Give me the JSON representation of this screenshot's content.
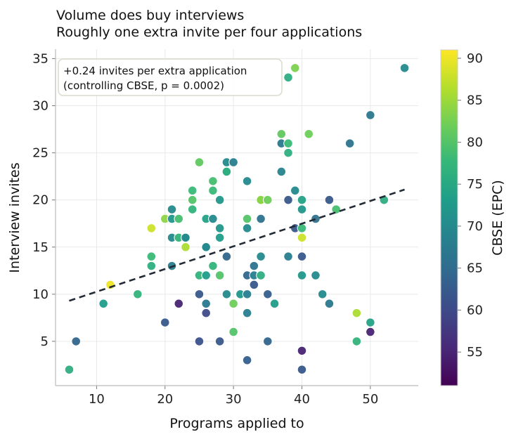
{
  "chart_data": {
    "type": "scatter",
    "title": "Volume does buy interviews",
    "subtitle": "Roughly one extra invite per four applications",
    "xlabel": "Programs applied to",
    "ylabel": "Interview invites",
    "xlim": [
      4,
      57
    ],
    "ylim": [
      0.3,
      36
    ],
    "xticks": [
      10,
      20,
      30,
      40,
      50
    ],
    "yticks": [
      5,
      10,
      15,
      20,
      25,
      30,
      35
    ],
    "grid": true,
    "annotation": [
      "+0.24 invites per extra application",
      "(controlling CBSE, p = 0.0002)"
    ],
    "trend": {
      "x": [
        6,
        55
      ],
      "y": [
        9.3,
        21.1
      ],
      "style": "dashed"
    },
    "colorbar": {
      "label": "CBSE (EPC)",
      "min": 51,
      "max": 91,
      "ticks": [
        55,
        60,
        65,
        70,
        75,
        80,
        85,
        90
      ],
      "colormap": [
        "#440154",
        "#482878",
        "#3e4989",
        "#31688e",
        "#26828e",
        "#1f9e89",
        "#35b779",
        "#6ece58",
        "#b5de2b",
        "#fde725"
      ]
    },
    "points": [
      {
        "x": 6,
        "y": 2,
        "c": 76
      },
      {
        "x": 7,
        "y": 5,
        "c": 64
      },
      {
        "x": 11,
        "y": 9,
        "c": 73
      },
      {
        "x": 12,
        "y": 11,
        "c": 90
      },
      {
        "x": 16,
        "y": 10,
        "c": 77
      },
      {
        "x": 18,
        "y": 17,
        "c": 88
      },
      {
        "x": 18,
        "y": 14,
        "c": 78
      },
      {
        "x": 18,
        "y": 13,
        "c": 76
      },
      {
        "x": 20,
        "y": 18,
        "c": 84
      },
      {
        "x": 20,
        "y": 7,
        "c": 62
      },
      {
        "x": 21,
        "y": 19,
        "c": 70
      },
      {
        "x": 21,
        "y": 18,
        "c": 72
      },
      {
        "x": 21,
        "y": 16,
        "c": 70
      },
      {
        "x": 21,
        "y": 13,
        "c": 68
      },
      {
        "x": 22,
        "y": 18,
        "c": 79
      },
      {
        "x": 22,
        "y": 16,
        "c": 77
      },
      {
        "x": 22,
        "y": 9,
        "c": 55
      },
      {
        "x": 23,
        "y": 16,
        "c": 72
      },
      {
        "x": 23,
        "y": 16,
        "c": 70
      },
      {
        "x": 23,
        "y": 15,
        "c": 86
      },
      {
        "x": 24,
        "y": 21,
        "c": 78
      },
      {
        "x": 24,
        "y": 20,
        "c": 80
      },
      {
        "x": 24,
        "y": 19,
        "c": 77
      },
      {
        "x": 25,
        "y": 24,
        "c": 81
      },
      {
        "x": 25,
        "y": 12,
        "c": 77
      },
      {
        "x": 25,
        "y": 10,
        "c": 62
      },
      {
        "x": 25,
        "y": 5,
        "c": 61
      },
      {
        "x": 26,
        "y": 18,
        "c": 74
      },
      {
        "x": 26,
        "y": 15,
        "c": 68
      },
      {
        "x": 26,
        "y": 15,
        "c": 70
      },
      {
        "x": 26,
        "y": 12,
        "c": 73
      },
      {
        "x": 26,
        "y": 9,
        "c": 67
      },
      {
        "x": 26,
        "y": 8,
        "c": 60
      },
      {
        "x": 27,
        "y": 22,
        "c": 79
      },
      {
        "x": 27,
        "y": 21,
        "c": 78
      },
      {
        "x": 27,
        "y": 18,
        "c": 70
      },
      {
        "x": 27,
        "y": 13,
        "c": 77
      },
      {
        "x": 28,
        "y": 20,
        "c": 72
      },
      {
        "x": 28,
        "y": 17,
        "c": 72
      },
      {
        "x": 28,
        "y": 16,
        "c": 73
      },
      {
        "x": 28,
        "y": 12,
        "c": 80
      },
      {
        "x": 28,
        "y": 5,
        "c": 62
      },
      {
        "x": 29,
        "y": 24,
        "c": 70
      },
      {
        "x": 29,
        "y": 23,
        "c": 77
      },
      {
        "x": 29,
        "y": 23,
        "c": 76
      },
      {
        "x": 29,
        "y": 14,
        "c": 64
      },
      {
        "x": 29,
        "y": 10,
        "c": 70
      },
      {
        "x": 30,
        "y": 24,
        "c": 68
      },
      {
        "x": 30,
        "y": 9,
        "c": 82
      },
      {
        "x": 30,
        "y": 6,
        "c": 80
      },
      {
        "x": 31,
        "y": 10,
        "c": 72
      },
      {
        "x": 32,
        "y": 22,
        "c": 70
      },
      {
        "x": 32,
        "y": 18,
        "c": 80
      },
      {
        "x": 32,
        "y": 17,
        "c": 70
      },
      {
        "x": 32,
        "y": 12,
        "c": 64
      },
      {
        "x": 32,
        "y": 10,
        "c": 68
      },
      {
        "x": 32,
        "y": 8,
        "c": 68
      },
      {
        "x": 32,
        "y": 3,
        "c": 63
      },
      {
        "x": 33,
        "y": 13,
        "c": 66
      },
      {
        "x": 33,
        "y": 12,
        "c": 68
      },
      {
        "x": 33,
        "y": 11,
        "c": 62
      },
      {
        "x": 34,
        "y": 20,
        "c": 81
      },
      {
        "x": 34,
        "y": 20,
        "c": 84
      },
      {
        "x": 34,
        "y": 18,
        "c": 66
      },
      {
        "x": 34,
        "y": 14,
        "c": 70
      },
      {
        "x": 34,
        "y": 12,
        "c": 76
      },
      {
        "x": 35,
        "y": 20,
        "c": 82
      },
      {
        "x": 35,
        "y": 10,
        "c": 63
      },
      {
        "x": 35,
        "y": 5,
        "c": 64
      },
      {
        "x": 36,
        "y": 9,
        "c": 73
      },
      {
        "x": 37,
        "y": 27,
        "c": 81
      },
      {
        "x": 37,
        "y": 26,
        "c": 67
      },
      {
        "x": 37,
        "y": 23,
        "c": 69
      },
      {
        "x": 38,
        "y": 33,
        "c": 76
      },
      {
        "x": 38,
        "y": 26,
        "c": 78
      },
      {
        "x": 38,
        "y": 25,
        "c": 76
      },
      {
        "x": 38,
        "y": 20,
        "c": 62
      },
      {
        "x": 38,
        "y": 14,
        "c": 68
      },
      {
        "x": 39,
        "y": 34,
        "c": 83
      },
      {
        "x": 39,
        "y": 21,
        "c": 70
      },
      {
        "x": 39,
        "y": 17,
        "c": 62
      },
      {
        "x": 40,
        "y": 20,
        "c": 74
      },
      {
        "x": 40,
        "y": 19,
        "c": 72
      },
      {
        "x": 40,
        "y": 17,
        "c": 78
      },
      {
        "x": 40,
        "y": 16,
        "c": 88
      },
      {
        "x": 40,
        "y": 14,
        "c": 62
      },
      {
        "x": 40,
        "y": 12,
        "c": 72
      },
      {
        "x": 40,
        "y": 4,
        "c": 55
      },
      {
        "x": 40,
        "y": 2,
        "c": 62
      },
      {
        "x": 41,
        "y": 27,
        "c": 82
      },
      {
        "x": 42,
        "y": 18,
        "c": 66
      },
      {
        "x": 42,
        "y": 12,
        "c": 70
      },
      {
        "x": 43,
        "y": 10,
        "c": 70
      },
      {
        "x": 44,
        "y": 20,
        "c": 62
      },
      {
        "x": 44,
        "y": 9,
        "c": 67
      },
      {
        "x": 45,
        "y": 19,
        "c": 79
      },
      {
        "x": 47,
        "y": 26,
        "c": 66
      },
      {
        "x": 48,
        "y": 8,
        "c": 86
      },
      {
        "x": 48,
        "y": 5,
        "c": 77
      },
      {
        "x": 50,
        "y": 29,
        "c": 67
      },
      {
        "x": 50,
        "y": 7,
        "c": 74
      },
      {
        "x": 50,
        "y": 6,
        "c": 55
      },
      {
        "x": 52,
        "y": 20,
        "c": 76
      },
      {
        "x": 55,
        "y": 34,
        "c": 70
      }
    ]
  }
}
